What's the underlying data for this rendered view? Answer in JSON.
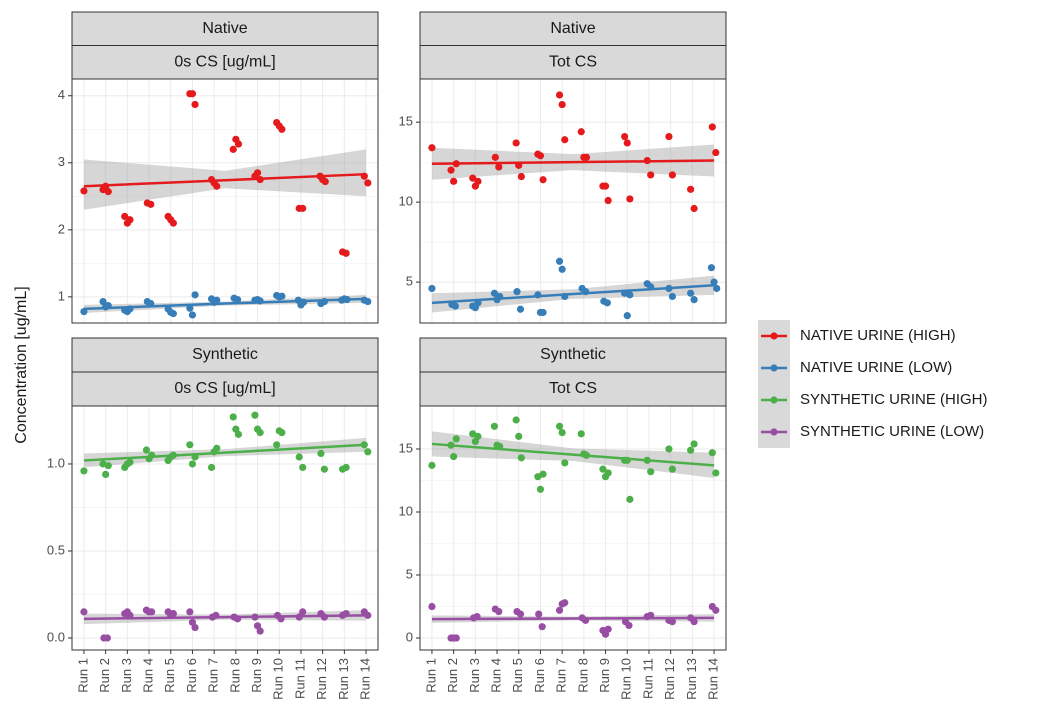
{
  "ylabel": "Concentration [ug/mL]",
  "chart_data": [
    {
      "type": "scatter",
      "strips": [
        "Native",
        "0s CS [ug/mL]"
      ],
      "xlim": [
        0.45,
        14.55
      ],
      "ylim": [
        0.61,
        4.25
      ],
      "yticks": [
        1,
        2,
        3,
        4
      ],
      "grid": true,
      "series": [
        {
          "name": "NATIVE URINE (HIGH)",
          "color": "#E41A1C",
          "x": [
            1,
            1.88,
            2,
            2.12,
            2.88,
            3,
            3.12,
            3.92,
            4.08,
            4.88,
            5,
            5.12,
            5.88,
            6,
            6.12,
            6.88,
            7,
            7.12,
            7.88,
            8,
            8.12,
            8.88,
            9,
            9.12,
            9.88,
            10,
            10.12,
            10.92,
            11.08,
            11.88,
            12,
            12.12,
            12.92,
            13.08,
            13.92,
            14.08
          ],
          "values": [
            2.58,
            2.6,
            2.65,
            2.57,
            2.2,
            2.1,
            2.15,
            2.4,
            2.38,
            2.2,
            2.15,
            2.1,
            4.03,
            4.03,
            3.87,
            2.75,
            2.7,
            2.65,
            3.2,
            3.35,
            3.28,
            2.8,
            2.85,
            2.75,
            3.6,
            3.55,
            3.5,
            2.32,
            2.32,
            2.8,
            2.75,
            2.72,
            1.67,
            1.65,
            2.8,
            2.7
          ],
          "fit": {
            "x": [
              1,
              7.5,
              14
            ],
            "values": [
              2.65,
              2.74,
              2.83
            ],
            "lower": [
              2.3,
              2.62,
              2.5
            ],
            "upper": [
              3.05,
              2.88,
              3.2
            ]
          }
        },
        {
          "name": "NATIVE URINE (LOW)",
          "color": "#377EB8",
          "x": [
            1,
            1.88,
            2,
            2.12,
            2.88,
            3,
            3.12,
            3.92,
            4.08,
            4.88,
            5,
            5.12,
            5.88,
            6,
            6.12,
            6.88,
            7,
            7.12,
            7.92,
            8.08,
            8.88,
            9,
            9.12,
            9.88,
            10,
            10.12,
            10.88,
            11,
            11.12,
            11.92,
            12.08,
            12.88,
            13,
            13.12,
            13.92,
            14.08
          ],
          "values": [
            0.78,
            0.93,
            0.85,
            0.87,
            0.8,
            0.78,
            0.82,
            0.93,
            0.9,
            0.82,
            0.77,
            0.75,
            0.83,
            0.73,
            1.03,
            0.97,
            0.92,
            0.95,
            0.98,
            0.96,
            0.95,
            0.96,
            0.94,
            1.02,
            1.0,
            1.01,
            0.95,
            0.88,
            0.92,
            0.9,
            0.93,
            0.95,
            0.97,
            0.96,
            0.95,
            0.93
          ],
          "fit": {
            "x": [
              1,
              7.5,
              14
            ],
            "values": [
              0.82,
              0.9,
              0.97
            ],
            "lower": [
              0.76,
              0.87,
              0.91
            ],
            "upper": [
              0.88,
              0.93,
              1.03
            ]
          }
        }
      ]
    },
    {
      "type": "scatter",
      "strips": [
        "Native",
        "Tot CS"
      ],
      "xlim": [
        0.45,
        14.55
      ],
      "ylim": [
        2.44,
        17.7
      ],
      "yticks": [
        5,
        10,
        15
      ],
      "grid": true,
      "series": [
        {
          "color": "#E41A1C",
          "x": [
            1,
            1.88,
            2,
            2.12,
            2.88,
            3,
            3.12,
            3.92,
            4.08,
            4.88,
            5,
            5.12,
            5.88,
            6,
            6.12,
            6.88,
            7,
            7.12,
            7.88,
            8,
            8.12,
            8.88,
            9,
            9.12,
            9.88,
            10,
            10.12,
            10.92,
            11.08,
            11.92,
            12.08,
            12.92,
            13.08,
            13.92,
            14.08
          ],
          "values": [
            13.4,
            12,
            11.3,
            12.4,
            11.5,
            11,
            11.3,
            12.8,
            12.2,
            13.7,
            12.3,
            11.6,
            13,
            12.9,
            11.4,
            16.7,
            16.1,
            13.9,
            14.4,
            12.8,
            12.8,
            11,
            11,
            10.1,
            14.1,
            13.7,
            10.2,
            12.6,
            11.7,
            14.1,
            11.7,
            10.8,
            9.6,
            14.7,
            13.1
          ],
          "fit": {
            "x": [
              1,
              7.5,
              14
            ],
            "values": [
              12.4,
              12.5,
              12.6
            ],
            "lower": [
              11.4,
              12.0,
              11.6
            ],
            "upper": [
              13.4,
              13.0,
              13.6
            ]
          }
        },
        {
          "color": "#377EB8",
          "x": [
            1,
            1.92,
            2.08,
            2.88,
            3,
            3.12,
            3.88,
            4,
            4.12,
            4.92,
            5.08,
            5.88,
            6,
            6.12,
            6.88,
            7,
            7.12,
            7.92,
            8.08,
            8.92,
            9.08,
            9.88,
            10,
            10.12,
            10.92,
            11.08,
            11.92,
            12.08,
            12.92,
            13.08,
            13.88,
            14,
            14.12
          ],
          "values": [
            4.6,
            3.6,
            3.5,
            3.5,
            3.4,
            3.7,
            4.3,
            3.9,
            4.1,
            4.4,
            3.3,
            4.2,
            3.1,
            3.1,
            6.3,
            5.8,
            4.1,
            4.6,
            4.4,
            3.8,
            3.7,
            4.3,
            2.9,
            4.2,
            4.9,
            4.7,
            4.6,
            4.1,
            4.3,
            3.9,
            5.9,
            5,
            4.6
          ],
          "fit": {
            "x": [
              1,
              7.5,
              14
            ],
            "values": [
              3.7,
              4.25,
              4.8
            ],
            "lower": [
              3.1,
              3.95,
              4.2
            ],
            "upper": [
              4.3,
              4.55,
              5.4
            ]
          }
        }
      ]
    },
    {
      "type": "scatter",
      "strips": [
        "Synthetic",
        "0s CS [ug/mL]"
      ],
      "xlim": [
        0.45,
        14.55
      ],
      "ylim": [
        -0.069,
        1.333
      ],
      "xticks": [
        {
          "value": 1,
          "label": "Run 1"
        },
        {
          "value": 2,
          "label": "Run 2"
        },
        {
          "value": 3,
          "label": "Run 3"
        },
        {
          "value": 4,
          "label": "Run 4"
        },
        {
          "value": 5,
          "label": "Run 5"
        },
        {
          "value": 6,
          "label": "Run 6"
        },
        {
          "value": 7,
          "label": "Run 7"
        },
        {
          "value": 8,
          "label": "Run 8"
        },
        {
          "value": 9,
          "label": "Run 9"
        },
        {
          "value": 10,
          "label": "Run 10"
        },
        {
          "value": 11,
          "label": "Run 11"
        },
        {
          "value": 12,
          "label": "Run 12"
        },
        {
          "value": 13,
          "label": "Run 13"
        },
        {
          "value": 14,
          "label": "Run 14"
        }
      ],
      "yticks": [
        {
          "value": 0,
          "label": "0.0"
        },
        {
          "value": 0.5,
          "label": "0.5"
        },
        {
          "value": 1,
          "label": "1.0"
        }
      ],
      "grid": true,
      "series": [
        {
          "name": "SYNTHETIC URINE (HIGH)",
          "color": "#4DAF4A",
          "x": [
            1,
            1.88,
            2,
            2.12,
            2.88,
            3,
            3.12,
            3.88,
            4,
            4.12,
            4.88,
            5,
            5.12,
            5.88,
            6,
            6.12,
            6.88,
            7,
            7.12,
            7.88,
            8,
            8.12,
            8.88,
            9,
            9.12,
            9.88,
            10,
            10.12,
            10.92,
            11.08,
            11.92,
            12.08,
            12.92,
            13.08,
            13.92,
            14.08
          ],
          "values": [
            0.96,
            1.0,
            0.94,
            0.99,
            0.98,
            1.0,
            1.01,
            1.08,
            1.03,
            1.05,
            1.02,
            1.04,
            1.05,
            1.11,
            1.0,
            1.04,
            0.98,
            1.07,
            1.09,
            1.27,
            1.2,
            1.17,
            1.28,
            1.2,
            1.18,
            1.11,
            1.19,
            1.18,
            1.04,
            0.98,
            1.06,
            0.97,
            0.97,
            0.98,
            1.11,
            1.07
          ],
          "fit": {
            "x": [
              1,
              7.5,
              14
            ],
            "values": [
              1.02,
              1.065,
              1.11
            ],
            "lower": [
              0.98,
              1.045,
              1.07
            ],
            "upper": [
              1.06,
              1.085,
              1.15
            ]
          }
        },
        {
          "name": "SYNTHETIC URINE (LOW)",
          "color": "#984EA3",
          "x": [
            1,
            1.92,
            2.08,
            2.88,
            3,
            3.12,
            3.88,
            4,
            4.12,
            4.88,
            5,
            5.12,
            5.88,
            6,
            6.12,
            6.92,
            7.08,
            7.92,
            8.08,
            8.88,
            9,
            9.12,
            9.92,
            10.08,
            10.92,
            11.08,
            11.92,
            12.08,
            12.92,
            13.08,
            13.92,
            14.08
          ],
          "values": [
            0.15,
            0,
            0,
            0.14,
            0.15,
            0.13,
            0.16,
            0.15,
            0.15,
            0.15,
            0.13,
            0.14,
            0.15,
            0.09,
            0.06,
            0.12,
            0.13,
            0.12,
            0.11,
            0.12,
            0.07,
            0.04,
            0.13,
            0.11,
            0.12,
            0.15,
            0.14,
            0.12,
            0.13,
            0.14,
            0.15,
            0.13
          ],
          "fit": {
            "x": [
              1,
              7.5,
              14
            ],
            "values": [
              0.11,
              0.12,
              0.13
            ],
            "lower": [
              0.08,
              0.105,
              0.1
            ],
            "upper": [
              0.14,
              0.135,
              0.16
            ]
          }
        }
      ]
    },
    {
      "type": "scatter",
      "strips": [
        "Synthetic",
        "Tot CS"
      ],
      "xlim": [
        0.45,
        14.55
      ],
      "ylim": [
        -0.95,
        18.41
      ],
      "xticks": [
        {
          "value": 1,
          "label": "Run 1"
        },
        {
          "value": 2,
          "label": "Run 2"
        },
        {
          "value": 3,
          "label": "Run 3"
        },
        {
          "value": 4,
          "label": "Run 4"
        },
        {
          "value": 5,
          "label": "Run 5"
        },
        {
          "value": 6,
          "label": "Run 6"
        },
        {
          "value": 7,
          "label": "Run 7"
        },
        {
          "value": 8,
          "label": "Run 8"
        },
        {
          "value": 9,
          "label": "Run 9"
        },
        {
          "value": 10,
          "label": "Run 10"
        },
        {
          "value": 11,
          "label": "Run 11"
        },
        {
          "value": 12,
          "label": "Run 12"
        },
        {
          "value": 13,
          "label": "Run 13"
        },
        {
          "value": 14,
          "label": "Run 14"
        }
      ],
      "yticks": [
        0,
        5,
        10,
        15
      ],
      "grid": true,
      "series": [
        {
          "color": "#4DAF4A",
          "x": [
            1,
            1.88,
            2,
            2.12,
            2.88,
            3,
            3.12,
            3.88,
            4,
            4.12,
            4.88,
            5,
            5.12,
            5.88,
            6,
            6.12,
            6.88,
            7,
            7.12,
            7.88,
            8,
            8.12,
            8.88,
            9,
            9.12,
            9.88,
            10,
            10.12,
            10.92,
            11.08,
            11.92,
            12.08,
            12.92,
            13.08,
            13.92,
            14.08
          ],
          "values": [
            13.7,
            15.3,
            14.4,
            15.8,
            16.2,
            15.6,
            16,
            16.8,
            15.3,
            15.2,
            17.3,
            16,
            14.3,
            12.8,
            11.8,
            13,
            16.8,
            16.3,
            13.9,
            16.2,
            14.6,
            14.5,
            13.4,
            12.8,
            13.1,
            14.1,
            14.1,
            11,
            14.1,
            13.2,
            15,
            13.4,
            14.9,
            15.4,
            14.7,
            13.1
          ],
          "fit": {
            "x": [
              1,
              7.5,
              14
            ],
            "values": [
              15.4,
              14.55,
              13.7
            ],
            "lower": [
              14.4,
              14.05,
              12.7
            ],
            "upper": [
              16.4,
              15.05,
              14.7
            ]
          }
        },
        {
          "color": "#984EA3",
          "x": [
            1,
            1.88,
            2,
            2.12,
            2.92,
            3.08,
            3.92,
            4.08,
            4.92,
            5.08,
            5.92,
            6.08,
            6.88,
            7,
            7.12,
            7.92,
            8.08,
            8.88,
            9,
            9.12,
            9.92,
            10.08,
            10.92,
            11.08,
            11.92,
            12.08,
            12.92,
            13.08,
            13.92,
            14.08
          ],
          "values": [
            2.5,
            0,
            0,
            0,
            1.6,
            1.7,
            2.3,
            2.1,
            2.1,
            1.9,
            1.9,
            0.9,
            2.2,
            2.7,
            2.8,
            1.6,
            1.4,
            0.6,
            0.3,
            0.7,
            1.3,
            1.0,
            1.7,
            1.8,
            1.4,
            1.3,
            1.6,
            1.3,
            2.5,
            2.2
          ],
          "fit": {
            "x": [
              1,
              7.5,
              14
            ],
            "values": [
              1.5,
              1.55,
              1.6
            ],
            "lower": [
              1.2,
              1.4,
              1.3
            ],
            "upper": [
              1.8,
              1.7,
              1.9
            ]
          }
        }
      ]
    }
  ]
}
